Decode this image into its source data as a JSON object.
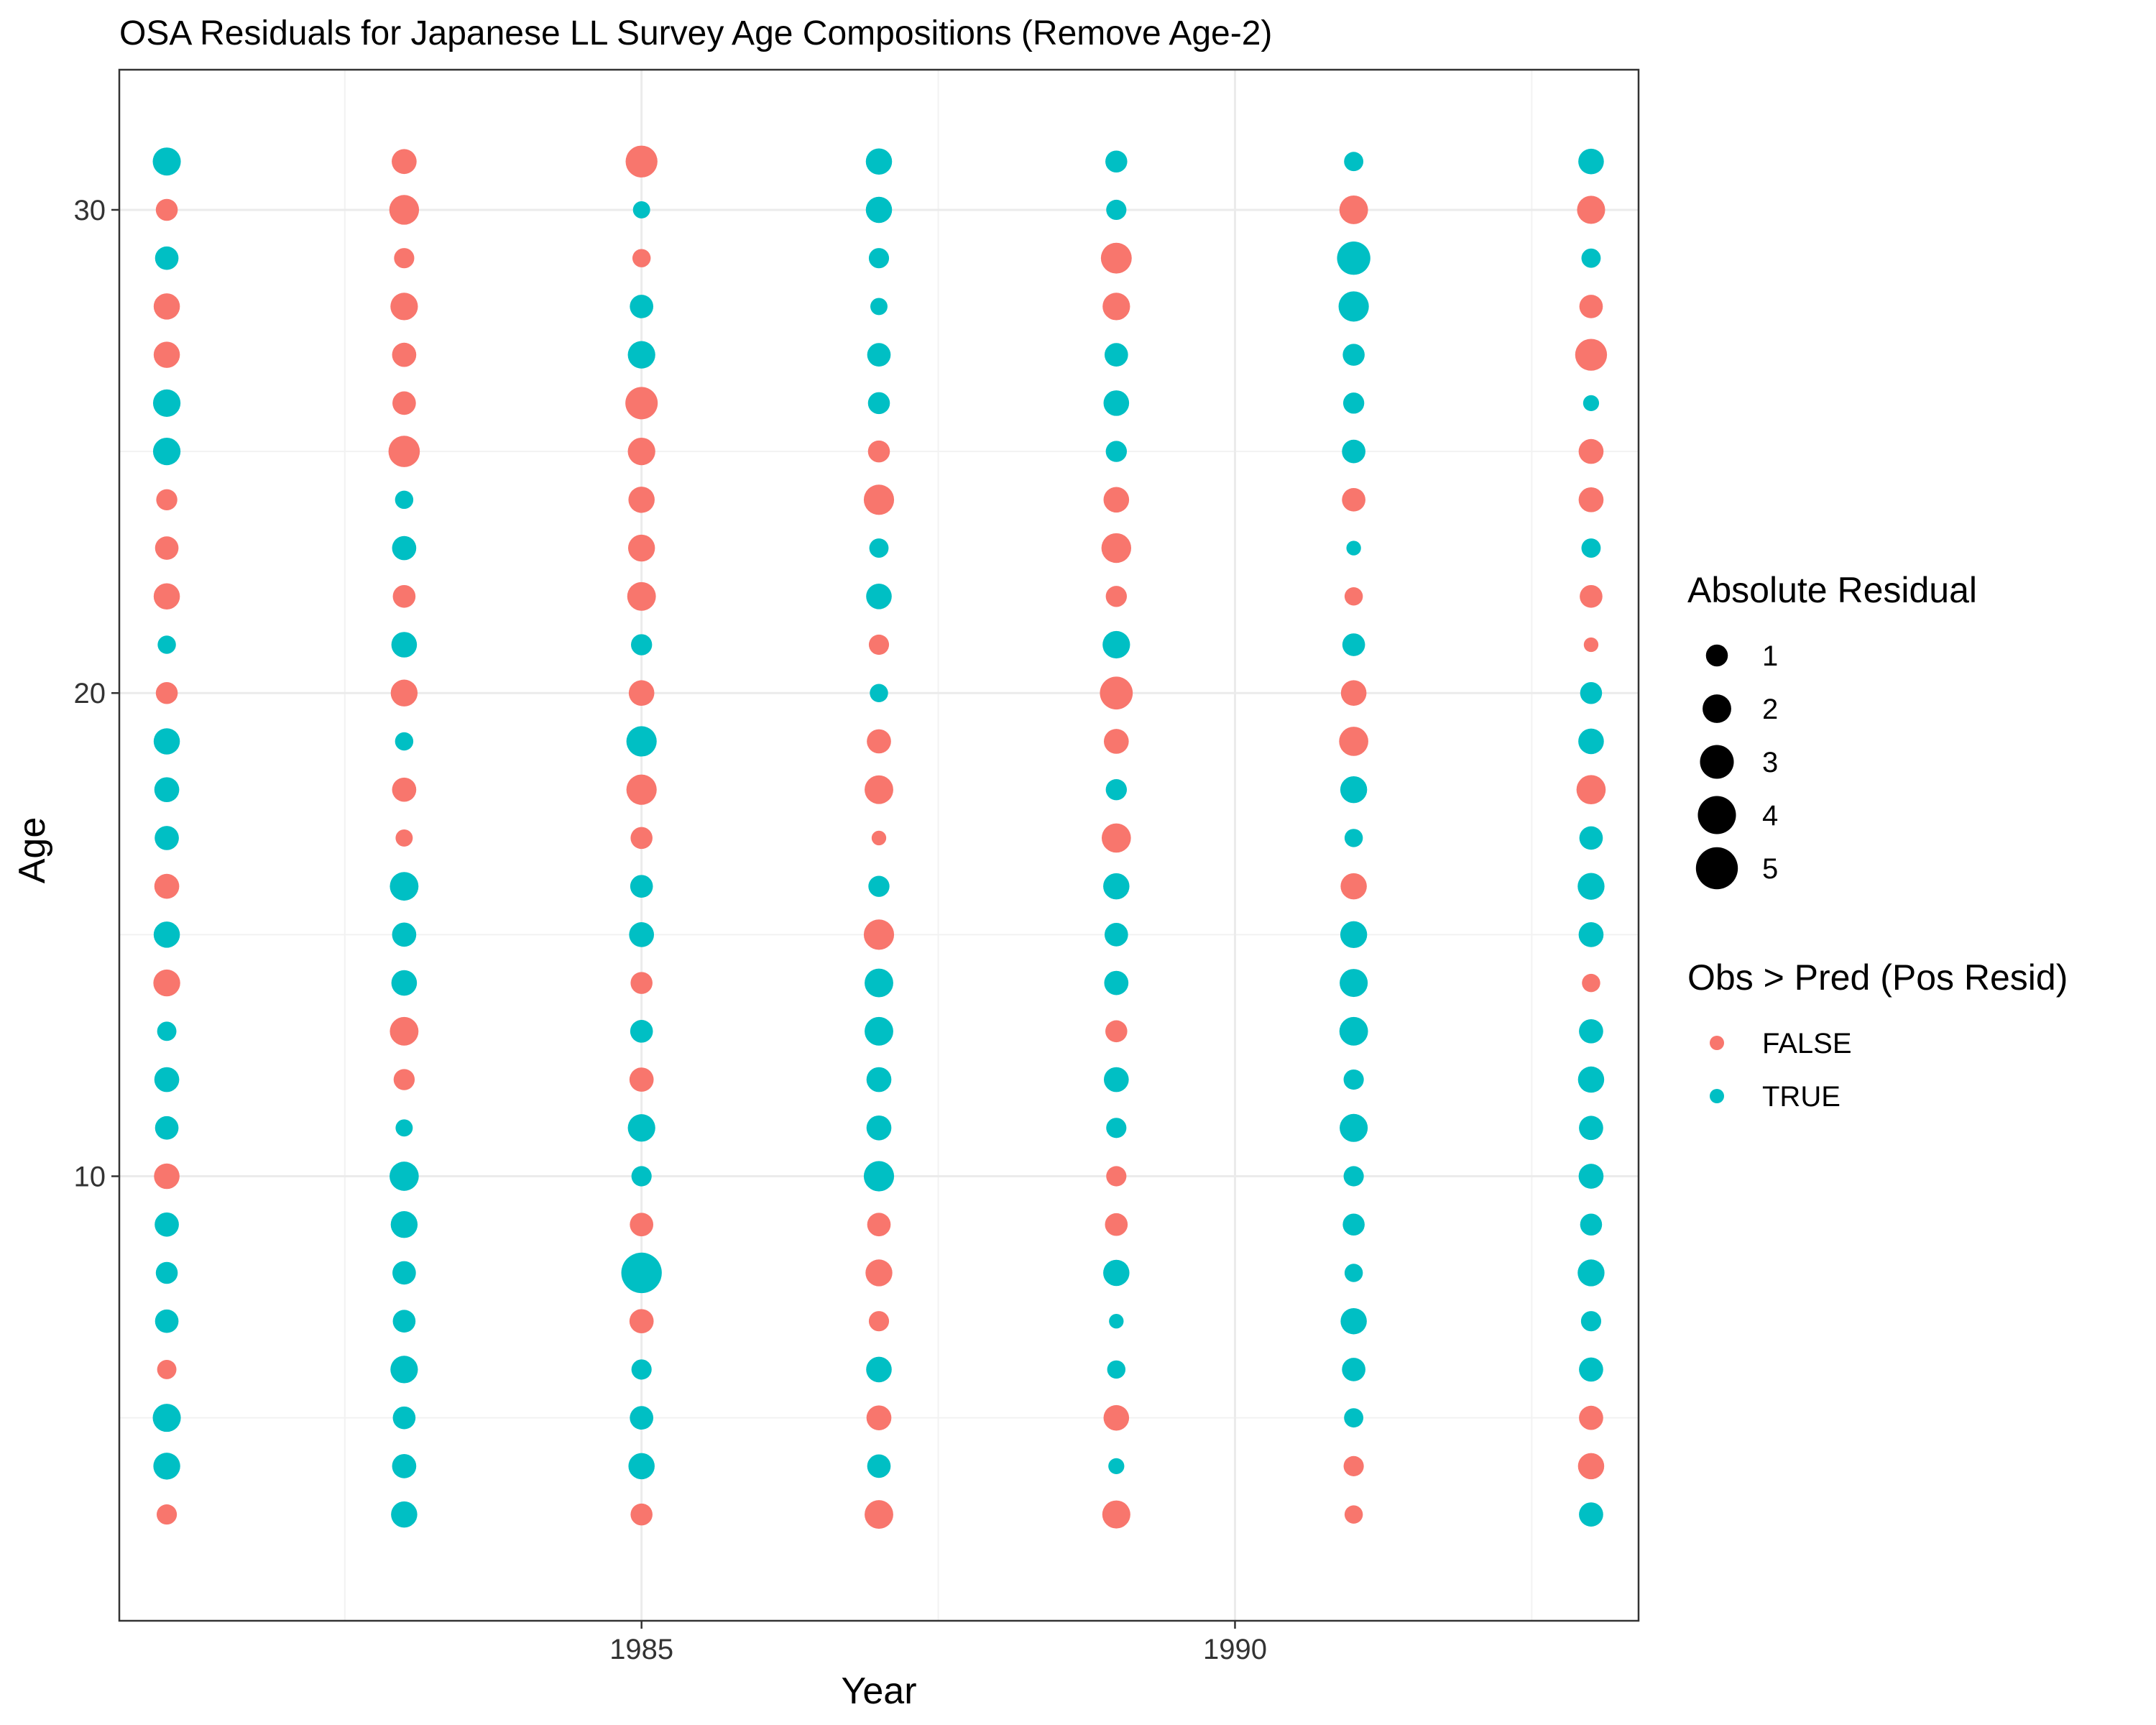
{
  "chart_data": {
    "type": "scatter",
    "title": "OSA Residuals for Japanese LL Survey Age Compositions (Remove Age-2)",
    "xlabel": "Year",
    "ylabel": "Age",
    "xlim": [
      1980.6,
      1993.4
    ],
    "ylim": [
      0.8,
      32.9
    ],
    "x_ticks": [
      1985,
      1990
    ],
    "y_ticks": [
      10,
      20,
      30
    ],
    "x_tick_labels": [
      "1985",
      "1990"
    ],
    "y_tick_labels": [
      "10",
      "20",
      "30"
    ],
    "grid": true,
    "legend_position": "right",
    "size_legend": {
      "title": "Absolute Residual",
      "values": [
        1,
        2,
        3,
        4,
        5
      ],
      "labels": [
        "1",
        "2",
        "3",
        "4",
        "5"
      ]
    },
    "color_legend": {
      "title": "Obs > Pred (Pos Resid)",
      "entries": [
        {
          "label": "FALSE",
          "color": "#F8766D"
        },
        {
          "label": "TRUE",
          "color": "#00BFC4"
        }
      ]
    },
    "colors": {
      "FALSE": "#F8766D",
      "TRUE": "#00BFC4"
    },
    "ages": [
      31,
      30,
      29,
      28,
      27,
      26,
      25,
      24,
      23,
      22,
      21,
      20,
      19,
      18,
      17,
      16,
      15,
      14,
      13,
      12,
      11,
      10,
      9,
      8,
      7,
      6,
      5,
      4,
      3
    ],
    "series": [
      {
        "year": 1981,
        "residuals": [
          1.9,
          -1.0,
          1.2,
          -1.6,
          -1.6,
          1.8,
          1.8,
          -0.9,
          -1.2,
          -1.6,
          0.6,
          -1.0,
          1.6,
          1.4,
          1.3,
          -1.4,
          1.6,
          -1.7,
          0.7,
          1.4,
          1.2,
          -1.5,
          1.3,
          1.0,
          1.2,
          -0.7,
          1.9,
          1.7,
          -0.8
        ]
      },
      {
        "year": 1983,
        "residuals": [
          -1.4,
          -2.2,
          -0.8,
          -1.8,
          -1.3,
          -1.2,
          -2.5,
          0.6,
          1.3,
          -1.1,
          1.5,
          -1.7,
          0.6,
          -1.3,
          -0.5,
          2.0,
          1.3,
          1.5,
          -2.0,
          -0.9,
          0.5,
          2.1,
          1.7,
          1.2,
          1.1,
          1.8,
          1.1,
          1.3,
          1.6
        ]
      },
      {
        "year": 1985,
        "residuals": [
          -2.6,
          0.5,
          -0.6,
          1.2,
          1.8,
          -2.7,
          -1.8,
          -1.6,
          -1.7,
          -2.0,
          0.9,
          -1.5,
          2.3,
          -2.3,
          -1.0,
          1.1,
          1.4,
          -1.0,
          1.1,
          -1.3,
          1.8,
          0.8,
          -1.2,
          4.6,
          -1.3,
          0.8,
          1.2,
          1.6,
          -1.0
        ]
      },
      {
        "year": 1987,
        "residuals": [
          1.6,
          1.6,
          0.8,
          0.5,
          1.2,
          1.0,
          -1.0,
          -2.3,
          0.7,
          1.5,
          -0.8,
          0.6,
          -1.3,
          -2.0,
          -0.3,
          0.9,
          -2.3,
          2.0,
          2.0,
          1.4,
          1.4,
          2.3,
          -1.2,
          -1.7,
          -0.8,
          1.5,
          -1.4,
          1.2,
          -2.0
        ]
      },
      {
        "year": 1989,
        "residuals": [
          1.0,
          0.8,
          -2.4,
          -1.8,
          1.2,
          1.5,
          0.9,
          -1.5,
          -2.2,
          -0.9,
          1.8,
          -2.8,
          -1.4,
          0.9,
          -2.1,
          1.6,
          1.2,
          1.3,
          -1.0,
          1.4,
          0.8,
          -0.8,
          -1.1,
          1.6,
          0.3,
          0.6,
          -1.5,
          0.4,
          -1.9
        ]
      },
      {
        "year": 1991,
        "residuals": [
          0.7,
          -2.0,
          2.9,
          2.3,
          1.0,
          0.9,
          1.2,
          -1.2,
          0.3,
          -0.6,
          1.1,
          -1.5,
          -2.1,
          1.7,
          0.6,
          -1.6,
          1.7,
          1.9,
          2.0,
          0.8,
          1.9,
          0.8,
          1.0,
          0.6,
          1.6,
          1.2,
          0.7,
          -0.8,
          -0.6
        ]
      },
      {
        "year": 1993,
        "residuals": [
          1.5,
          -1.9,
          0.7,
          -1.2,
          -2.6,
          0.4,
          -1.4,
          -1.4,
          0.7,
          -1.1,
          -0.3,
          1.0,
          1.5,
          -2.1,
          1.2,
          1.7,
          1.4,
          -0.6,
          1.3,
          1.6,
          1.3,
          1.4,
          1.0,
          1.7,
          0.8,
          1.3,
          -1.3,
          -1.6,
          1.3
        ]
      }
    ]
  }
}
